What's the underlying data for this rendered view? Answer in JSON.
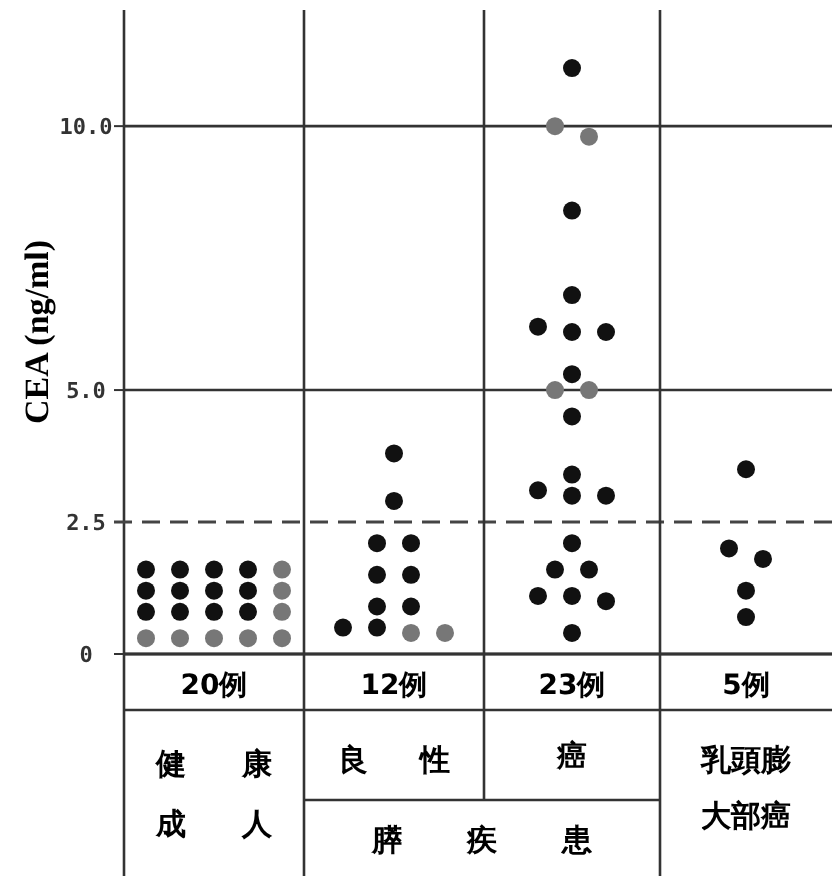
{
  "chart_data": {
    "type": "scatter",
    "ylabel": "CEA (ng/ml)",
    "categories": [
      "20例",
      "12例",
      "23例",
      "5例"
    ],
    "ylim": [
      0,
      12.2
    ],
    "yticks": [
      0,
      2.5,
      {
        "value": 5,
        "label": "5.0"
      },
      {
        "value": 10,
        "label": "10.0"
      }
    ],
    "grid": "y",
    "marker": "circle",
    "ref_lines": [
      {
        "axis": "y",
        "value": 2.5,
        "line_style": "dashed"
      }
    ],
    "series": [
      {
        "color": "#111111",
        "x": [
          "20例",
          "20例",
          "20例",
          "20例",
          "20例",
          "20例",
          "20例",
          "20例",
          "20例",
          "20例",
          "20例",
          "20例",
          "12例",
          "12例",
          "12例",
          "12例",
          "12例",
          "12例",
          "12例",
          "12例",
          "12例",
          "12例",
          "23例",
          "23例",
          "23例",
          "23例",
          "23例",
          "23例",
          "23例",
          "23例",
          "23例",
          "23例",
          "23例",
          "23例",
          "23例",
          "23例",
          "23例",
          "23例",
          "23例",
          "23例",
          "23例",
          "5例",
          "5例",
          "5例",
          "5例",
          "5例"
        ],
        "values": [
          1.6,
          1.6,
          1.6,
          1.6,
          1.2,
          1.2,
          1.2,
          1.2,
          0.8,
          0.8,
          0.8,
          0.8,
          3.8,
          2.9,
          2.1,
          2.1,
          1.5,
          1.5,
          0.9,
          0.9,
          0.5,
          0.5,
          11.1,
          8.4,
          6.8,
          6.1,
          6.1,
          6.2,
          5.3,
          4.5,
          3.1,
          3.4,
          3.0,
          3.0,
          2.1,
          1.6,
          1.6,
          1.0,
          1.1,
          1.1,
          0.4,
          3.5,
          1.8,
          2.0,
          1.2,
          0.7
        ]
      },
      {
        "color": "#777777",
        "x": [
          "20例",
          "20例",
          "20例",
          "20例",
          "20例",
          "20例",
          "20例",
          "20例",
          "12例",
          "12例",
          "23例",
          "23例",
          "23例",
          "23例"
        ],
        "values": [
          1.6,
          1.2,
          0.8,
          0.3,
          0.3,
          0.3,
          0.3,
          0.3,
          0.4,
          0.4,
          9.8,
          10.0,
          5.0,
          5.0
        ]
      }
    ],
    "annotations": [
      "健康成人",
      "良性",
      "癌",
      "膵疾患",
      "乳頭膨大部癌"
    ]
  }
}
